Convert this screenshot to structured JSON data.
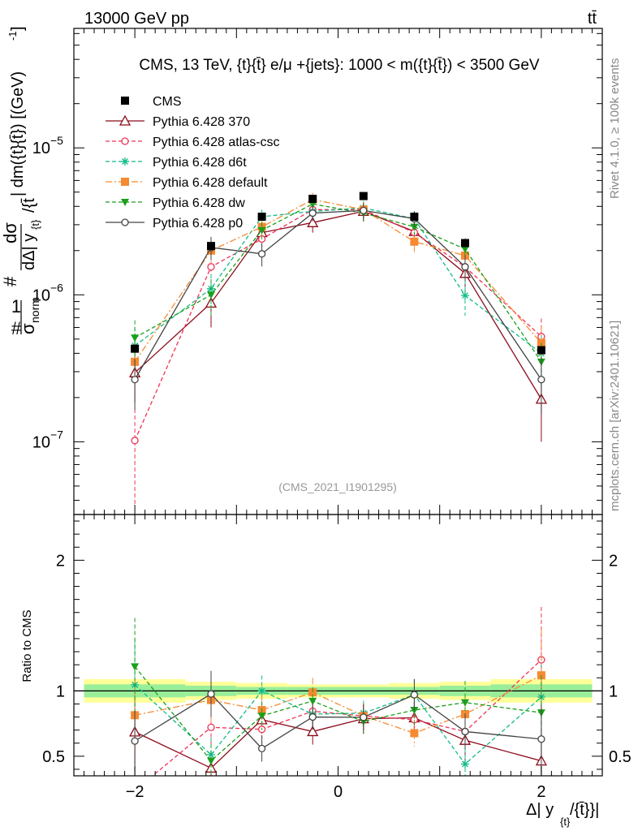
{
  "header": {
    "left": "13000 GeV pp",
    "right": "tt̄",
    "side_top": "Rivet 4.1.0, ≥ 100k events",
    "side_bottom": "mcplots.cern.ch [arXiv:2401.10621]"
  },
  "chart_data": {
    "type": "scatter",
    "title": "CMS, 13 TeV, {t}{t̄} e/μ +{jets}: 1000 < m({t}{t̄}) < 3500 GeV",
    "watermark": "(CMS_2021_I1901295)",
    "ylabel": "#1/σnorm #dσ/dΔ|yt/t̄| dm({t}{t̄}) [(GeV)⁻¹]",
    "ylabel_parts": {
      "hash1": "#",
      "one": "1",
      "sigma": "σ",
      "norm": "norm",
      "hash2": "#",
      "dsigma": "dσ",
      "dy": "dΔ| y",
      "dy_sub": "{t}",
      "dy_tail": "/{t̄",
      "dm": "| dm({t}{t̄}) [(GeV)",
      "dm_exp": "-1",
      "dm_close": "]"
    },
    "xlabel_parts": {
      "main": "Δ| y",
      "sub": "{t}",
      "tail": "/{t̄}}|"
    },
    "ratio_ylabel": "Ratio to CMS",
    "yscale": "log",
    "ylim": [
      3.2e-08,
      6.5e-05
    ],
    "xlim": [
      -2.6,
      2.6
    ],
    "x_ticks": [
      -2,
      0,
      2
    ],
    "x_tick_labels": [
      "−2",
      "0",
      "2"
    ],
    "y_ticks": [
      1e-07,
      1e-06,
      1e-05
    ],
    "y_tick_labels": [
      {
        "base": "10",
        "exp": "−7"
      },
      {
        "base": "10",
        "exp": "−6"
      },
      {
        "base": "10",
        "exp": "−5"
      }
    ],
    "ratio_ylim": [
      0.35,
      2.35
    ],
    "ratio_y_ticks": [
      0.5,
      1,
      2
    ],
    "ratio_y_tick_labels": [
      "0.5",
      "1",
      "2"
    ],
    "bins": [
      -2.5,
      -1.5,
      -1.0,
      -0.5,
      0.0,
      0.5,
      1.0,
      1.5,
      2.5
    ],
    "x": [
      -2.0,
      -1.25,
      -0.75,
      -0.25,
      0.25,
      0.75,
      1.25,
      2.0
    ],
    "band_stat": [
      0.05,
      0.04,
      0.03,
      0.03,
      0.03,
      0.03,
      0.04,
      0.05
    ],
    "band_total": [
      0.09,
      0.07,
      0.06,
      0.05,
      0.05,
      0.06,
      0.07,
      0.09
    ],
    "data": {
      "name": "CMS",
      "color": "#000000",
      "values": [
        4.3e-07,
        2.15e-06,
        3.4e-06,
        4.5e-06,
        4.7e-06,
        3.4e-06,
        2.25e-06,
        4.2e-07
      ]
    },
    "series": [
      {
        "name": "Pythia 6.428 370",
        "color": "#8b0a1a",
        "marker": "triangle-open",
        "dash": "",
        "values": [
          2.95e-07,
          8.8e-07,
          2.65e-06,
          3.1e-06,
          3.7e-06,
          2.7e-06,
          1.4e-06,
          1.95e-07
        ],
        "errors": [
          1.1e-07,
          2.8e-07,
          3.6e-07,
          4.5e-07,
          5.5e-07,
          4e-07,
          3.5e-07,
          9.5e-08
        ]
      },
      {
        "name": "Pythia 6.428 atlas-csc",
        "color": "#ee3355",
        "marker": "circle-open",
        "dash": "5,3",
        "values": [
          1.02e-07,
          1.55e-06,
          2.4e-06,
          3.8e-06,
          3.8e-06,
          2.65e-06,
          1.55e-06,
          5.2e-07
        ],
        "errors": [
          6.5e-08,
          3.3e-07,
          3.6e-07,
          4.3e-07,
          4.5e-07,
          3.7e-07,
          3.2e-07,
          1.7e-07
        ]
      },
      {
        "name": "Pythia 6.428 d6t",
        "color": "#11bb88",
        "marker": "star",
        "dash": "5,3",
        "values": [
          4.5e-07,
          1.1e-06,
          3.4e-06,
          3.7e-06,
          3.9e-06,
          3.3e-06,
          9.9e-07,
          4e-07
        ],
        "errors": [
          1.5e-07,
          2.8e-07,
          4e-07,
          4.3e-07,
          4.5e-07,
          4e-07,
          2.7e-07,
          1.3e-07
        ]
      },
      {
        "name": "Pythia 6.428 default",
        "color": "#f58a32",
        "marker": "square",
        "dash": "8,3,2,3",
        "values": [
          3.5e-07,
          2e-06,
          2.9e-06,
          4.45e-06,
          3.8e-06,
          2.3e-06,
          1.85e-06,
          4.7e-07
        ],
        "errors": [
          1.2e-07,
          3.7e-07,
          4e-07,
          5e-07,
          4.5e-07,
          3.5e-07,
          3.6e-07,
          1.5e-07
        ]
      },
      {
        "name": "Pythia 6.428 dw",
        "color": "#1a9f1a",
        "marker": "triangle-down",
        "dash": "5,3",
        "values": [
          5.1e-07,
          1e-06,
          2.75e-06,
          4.15e-06,
          3.6e-06,
          2.9e-06,
          2.05e-06,
          3.5e-07
        ],
        "errors": [
          1.6e-07,
          2.8e-07,
          3.7e-07,
          4.5e-07,
          4.3e-07,
          3.9e-07,
          3.7e-07,
          1.2e-07
        ]
      },
      {
        "name": "Pythia 6.428 p0",
        "color": "#444444",
        "marker": "circle-open",
        "dash": "",
        "values": [
          2.65e-07,
          2.1e-06,
          1.9e-06,
          3.6e-06,
          3.75e-06,
          3.3e-06,
          1.55e-06,
          2.65e-07
        ],
        "errors": [
          1e-07,
          3.8e-07,
          3.4e-07,
          4.4e-07,
          4.6e-07,
          4.1e-07,
          3.1e-07,
          1.1e-07
        ]
      }
    ]
  }
}
